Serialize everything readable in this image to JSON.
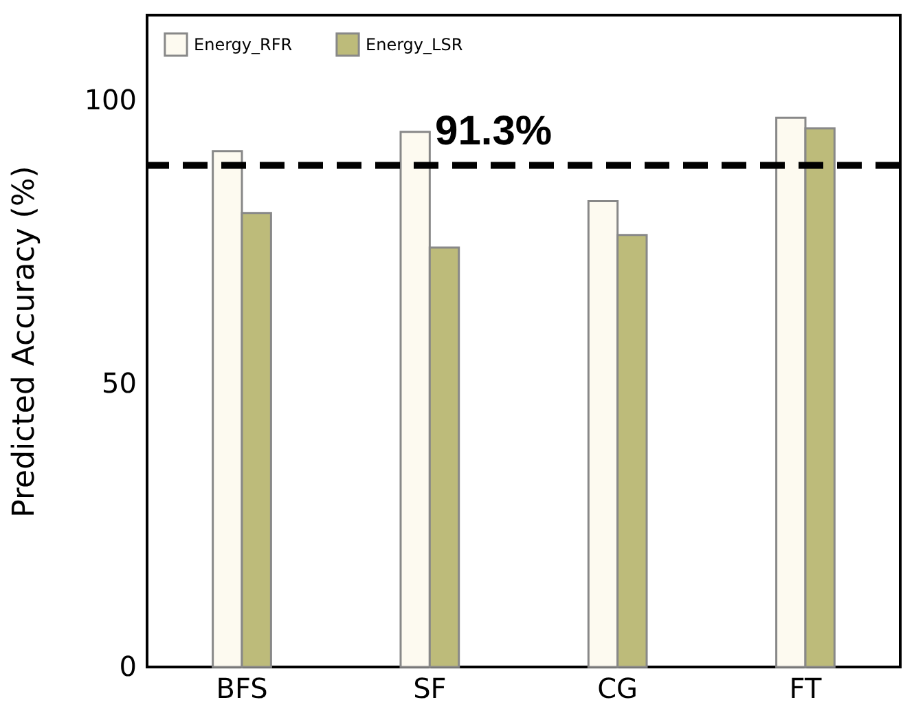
{
  "chart_data": {
    "type": "bar",
    "ylabel": "Predicted Accuracy (%)",
    "categories": [
      "BFS",
      "SF",
      "CG",
      "FT"
    ],
    "series": [
      {
        "name": "Energy_RFR",
        "color": "#fdfaf0",
        "values": [
          91.0,
          94.4,
          82.2,
          96.9
        ]
      },
      {
        "name": "Energy_LSR",
        "color": "#bdbb7a",
        "values": [
          80.1,
          74.0,
          76.2,
          95.0
        ]
      }
    ],
    "ylim": [
      0,
      115
    ],
    "yticks": [
      0,
      50,
      100
    ],
    "grid": false,
    "legend": "top left",
    "annotations": [
      "91.3%"
    ],
    "ref_lines": [
      {
        "axis": "y",
        "value": 88.5,
        "color": "#000000",
        "line_style": "dashed"
      }
    ]
  }
}
